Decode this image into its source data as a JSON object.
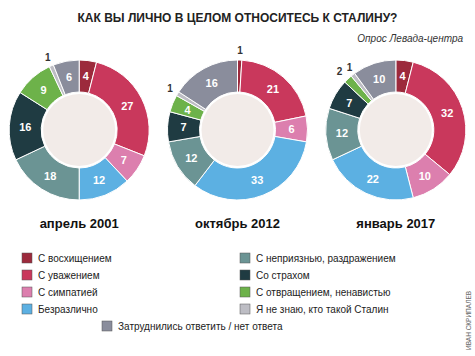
{
  "chart_data": {
    "type": "pie",
    "title": "КАК ВЫ ЛИЧНО В ЦЕЛОМ ОТНОСИТЕСЬ К СТАЛИНУ?",
    "subtitle": "Опрос Левада-центра",
    "annotations": [
      "ИВАН СКРИПАЛЕВ"
    ],
    "categories": [
      "С восхищением",
      "С уважением",
      "С симпатией",
      "Безразлично",
      "С неприязнью, раздражением",
      "Со страхом",
      "С отвращением, ненавистью",
      "Я не знаю, кто такой Сталин",
      "Затруднились ответить / нет ответа"
    ],
    "colors": [
      "#9c2a3c",
      "#c9385c",
      "#dc7fae",
      "#5cb0e2",
      "#6b9494",
      "#1f3b42",
      "#6db24a",
      "#bdbdc4",
      "#8a8d9c"
    ],
    "series": [
      {
        "name": "апрель 2001",
        "values": [
          4,
          27,
          7,
          12,
          18,
          16,
          9,
          1,
          6
        ]
      },
      {
        "name": "октябрь 2012",
        "values": [
          1,
          21,
          6,
          33,
          12,
          7,
          4,
          1,
          16
        ]
      },
      {
        "name": "январь 2017",
        "values": [
          4,
          32,
          10,
          22,
          12,
          7,
          2,
          1,
          10
        ]
      }
    ],
    "data_labels": true,
    "legend": "bottom"
  }
}
